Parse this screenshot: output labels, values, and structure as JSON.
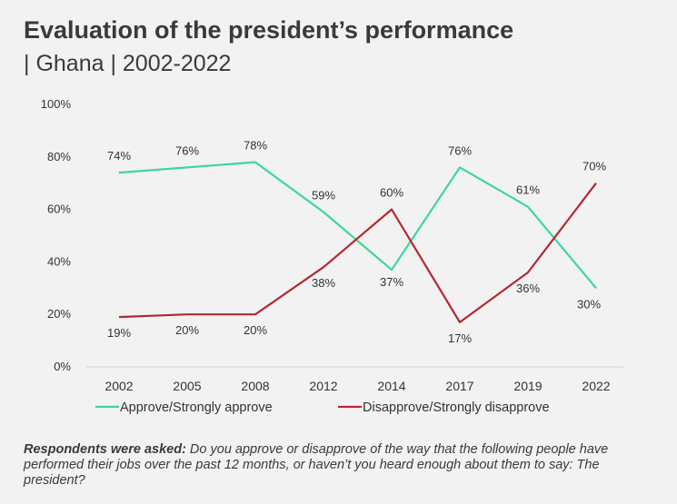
{
  "header": {
    "title": "Evaluation of the president’s performance",
    "subtitle": "| Ghana | 2002-2022"
  },
  "chart_data": {
    "type": "line",
    "x": [
      "2002",
      "2005",
      "2008",
      "2012",
      "2014",
      "2017",
      "2019",
      "2022"
    ],
    "ylim": [
      0,
      100
    ],
    "yticks": [
      "0%",
      "20%",
      "40%",
      "60%",
      "80%",
      "100%"
    ],
    "grid": false,
    "legend_position": "bottom",
    "series": [
      {
        "name": "Approve/Strongly approve",
        "color": "#3dd6a0",
        "values": [
          74,
          76,
          78,
          59,
          37,
          76,
          61,
          30
        ],
        "labels": [
          "74%",
          "76%",
          "78%",
          "59%",
          "37%",
          "76%",
          "61%",
          "30%"
        ]
      },
      {
        "name": "Disapprove/Strongly disapprove",
        "color": "#b22a33",
        "values": [
          19,
          20,
          20,
          38,
          60,
          17,
          36,
          70
        ],
        "labels": [
          "19%",
          "20%",
          "20%",
          "38%",
          "60%",
          "17%",
          "36%",
          "70%"
        ]
      }
    ]
  },
  "footnote": {
    "lead": "Respondents were asked:",
    "text": " Do you approve or disapprove of the way that the following people have performed their jobs over the past 12 months, or haven’t you heard enough about them to say: The president?"
  }
}
